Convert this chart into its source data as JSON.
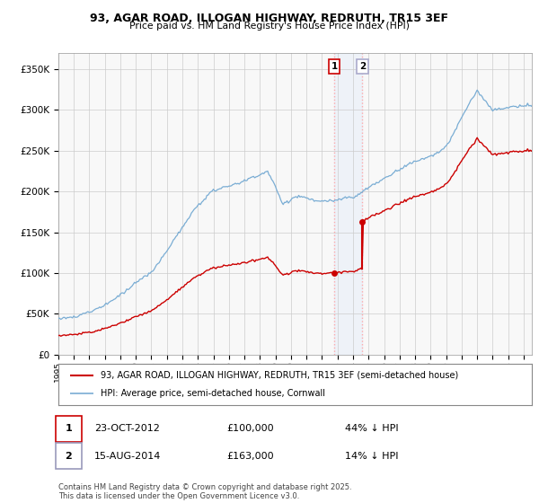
{
  "title": "93, AGAR ROAD, ILLOGAN HIGHWAY, REDRUTH, TR15 3EF",
  "subtitle": "Price paid vs. HM Land Registry's House Price Index (HPI)",
  "legend_line1": "93, AGAR ROAD, ILLOGAN HIGHWAY, REDRUTH, TR15 3EF (semi-detached house)",
  "legend_line2": "HPI: Average price, semi-detached house, Cornwall",
  "footnote": "Contains HM Land Registry data © Crown copyright and database right 2025.\nThis data is licensed under the Open Government Licence v3.0.",
  "annotation1_date": "23-OCT-2012",
  "annotation1_price": "£100,000",
  "annotation1_hpi": "44% ↓ HPI",
  "annotation2_date": "15-AUG-2014",
  "annotation2_price": "£163,000",
  "annotation2_hpi": "14% ↓ HPI",
  "hpi_color": "#7aadd4",
  "price_color": "#cc0000",
  "vline_color": "#ff9999",
  "background_color": "#ffffff",
  "ylim": [
    0,
    370000
  ],
  "xlim_start": 1995.0,
  "xlim_end": 2025.5,
  "sale1_t": 2012.8,
  "sale1_p": 100000,
  "sale2_t": 2014.6,
  "sale2_p": 163000
}
